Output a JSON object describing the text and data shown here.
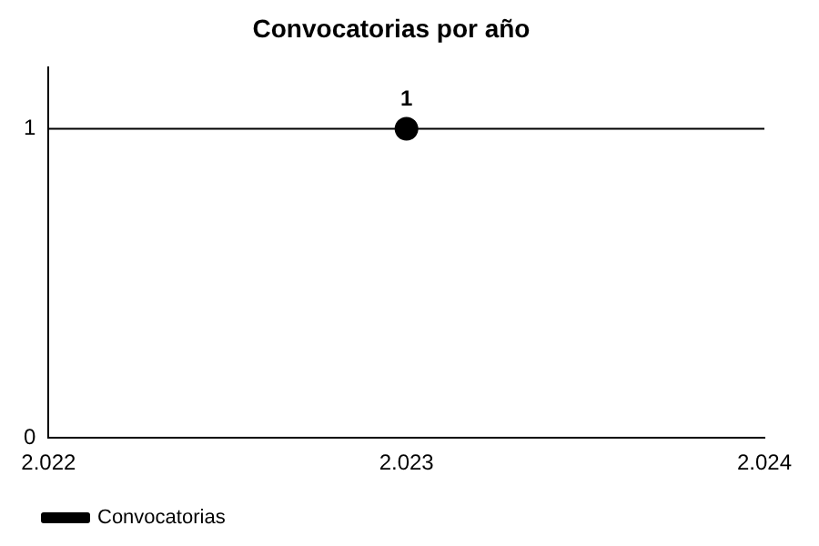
{
  "chart_data": {
    "type": "line",
    "title": "Convocatorias por año",
    "x": [
      2023
    ],
    "series": [
      {
        "name": "Convocatorias",
        "color": "#000000",
        "values": [
          1
        ]
      }
    ],
    "xlim": [
      2022,
      2024
    ],
    "xticks": [
      {
        "value": 2022,
        "label": "2.022"
      },
      {
        "value": 2023,
        "label": "2.023"
      },
      {
        "value": 2024,
        "label": "2.024"
      }
    ],
    "ylim": [
      0,
      1.2
    ],
    "yticks": [
      0,
      1
    ],
    "ref_lines": [
      {
        "axis": "y",
        "value": 1,
        "color": "#000000"
      }
    ],
    "legend": "bottom left",
    "marker": "circle",
    "data_labels": true
  }
}
